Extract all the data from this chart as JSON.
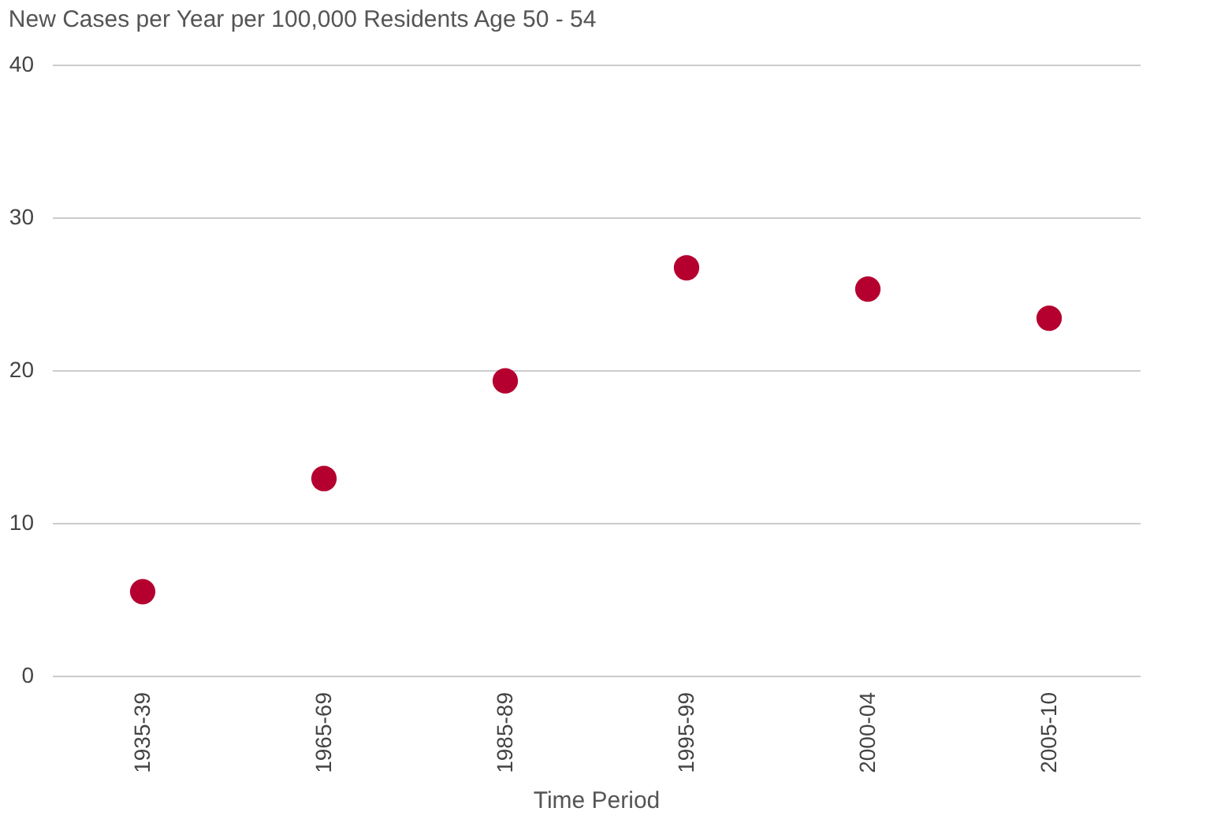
{
  "chart_data": {
    "type": "scatter",
    "title": "New Cases per Year per 100,000 Residents Age 50 - 54",
    "xlabel": "Time Period",
    "categories": [
      "1935-39",
      "1965-69",
      "1985-89",
      "1995-99",
      "2000-04",
      "2005-10"
    ],
    "series": [
      {
        "color": "#b5002f",
        "values": [
          5.5,
          12.9,
          19.3,
          26.7,
          25.3,
          23.4
        ]
      }
    ],
    "ylim": [
      0,
      40
    ],
    "yticks": [
      0,
      10,
      20,
      30,
      40
    ],
    "grid": "y",
    "marker": "circle"
  }
}
